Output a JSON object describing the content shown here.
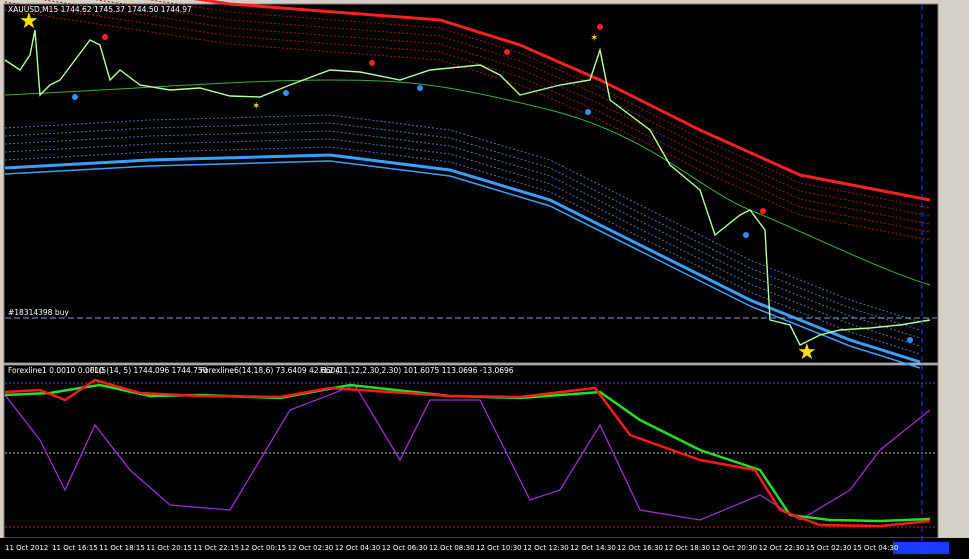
{
  "header": {
    "symbol": "XAUUSD,M15 1744.62 1745.37 1744.50 1744.97"
  },
  "order_label": "#18314398 buy",
  "indicator_header": [
    "Forexline1 0.0010 0.0010",
    "FL(5(14, 5) 1744.096 1744.750",
    "Forexline6(14,18,6) 73.6409 42.6604",
    "FL2 (11,12,2.30,2.30) 101.6075 113.0696 -13.0696"
  ],
  "time_axis": [
    "11 Oct 2012",
    "11 Oct 16:15",
    "11 Oct 18:15",
    "11 Oct 20:15",
    "11 Oct 22:15",
    "12 Oct 00:15",
    "12 Oct 02:30",
    "12 Oct 04:30",
    "12 Oct 06:30",
    "12 Oct 08:30",
    "12 Oct 10:30",
    "12 Oct 12:30",
    "12 Oct 14:30",
    "12 Oct 16:30",
    "12 Oct 18:30",
    "12 Oct 20:30",
    "12 Oct 22:30",
    "15 Oct 02:30",
    "15 Oct 04:30"
  ]
}
